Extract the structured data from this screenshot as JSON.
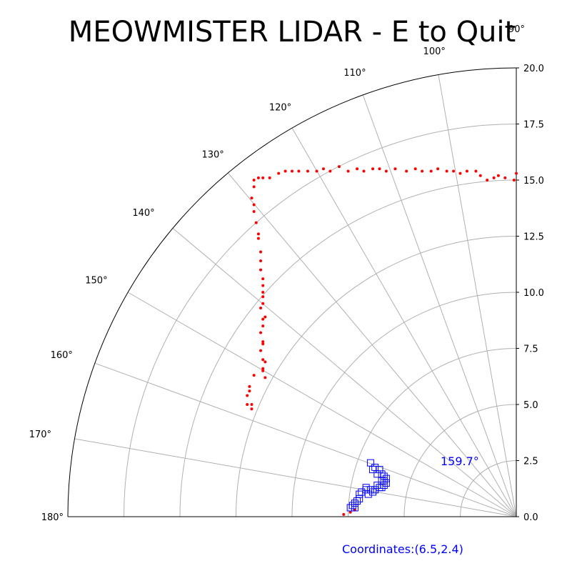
{
  "title": "MEOWMISTER LIDAR - E to Quit",
  "coordinates_text": "Coordinates:(6.5,2.4)",
  "angle_annotation": "159.7°",
  "colors": {
    "points": "#ff0000",
    "markers": "#0000ff",
    "grid": "#b0b0b0",
    "text_accent": "#0000ff"
  },
  "chart_data": {
    "type": "scatter",
    "projection": "polar",
    "theta_range_deg": [
      90,
      180
    ],
    "r_range": [
      0,
      20
    ],
    "grid": true,
    "theta_ticks": [
      "90°",
      "100°",
      "110°",
      "120°",
      "130°",
      "140°",
      "150°",
      "160°",
      "170°",
      "180°"
    ],
    "r_ticks": [
      "0.0",
      "2.5",
      "5.0",
      "7.5",
      "10.0",
      "12.5",
      "15.0",
      "17.5",
      "20.0"
    ],
    "series": [
      {
        "marker": "dot",
        "color": "#ff0000",
        "points_xy": [
          [
            0.0,
            15.3
          ],
          [
            -0.1,
            15.0
          ],
          [
            -0.5,
            15.1
          ],
          [
            -0.8,
            15.2
          ],
          [
            -1.0,
            15.1
          ],
          [
            -1.3,
            15.0
          ],
          [
            -1.6,
            15.2
          ],
          [
            -1.8,
            15.4
          ],
          [
            -2.2,
            15.4
          ],
          [
            -2.5,
            15.3
          ],
          [
            -2.8,
            15.4
          ],
          [
            -3.1,
            15.4
          ],
          [
            -3.5,
            15.5
          ],
          [
            -3.8,
            15.4
          ],
          [
            -4.2,
            15.4
          ],
          [
            -4.5,
            15.5
          ],
          [
            -4.9,
            15.4
          ],
          [
            -5.4,
            15.5
          ],
          [
            -5.8,
            15.4
          ],
          [
            -6.1,
            15.5
          ],
          [
            -6.4,
            15.5
          ],
          [
            -6.8,
            15.4
          ],
          [
            -7.1,
            15.5
          ],
          [
            -7.5,
            15.4
          ],
          [
            -7.9,
            15.6
          ],
          [
            -8.3,
            15.4
          ],
          [
            -8.6,
            15.5
          ],
          [
            -8.9,
            15.4
          ],
          [
            -9.3,
            15.4
          ],
          [
            -9.7,
            15.4
          ],
          [
            -10.0,
            15.4
          ],
          [
            -10.3,
            15.4
          ],
          [
            -10.6,
            15.3
          ],
          [
            -11.0,
            15.1
          ],
          [
            -11.3,
            15.1
          ],
          [
            -11.5,
            15.1
          ],
          [
            -11.7,
            15.0
          ],
          [
            -11.7,
            14.7
          ],
          [
            -11.8,
            14.2
          ],
          [
            -11.7,
            13.9
          ],
          [
            -11.7,
            13.6
          ],
          [
            -11.6,
            13.1
          ],
          [
            -11.5,
            12.6
          ],
          [
            -11.5,
            12.4
          ],
          [
            -11.4,
            11.8
          ],
          [
            -11.4,
            11.4
          ],
          [
            -11.4,
            11.0
          ],
          [
            -11.3,
            10.6
          ],
          [
            -11.3,
            10.3
          ],
          [
            -11.3,
            10.0
          ],
          [
            -11.3,
            9.8
          ],
          [
            -11.3,
            9.5
          ],
          [
            -11.4,
            9.3
          ],
          [
            -11.3,
            8.8
          ],
          [
            -11.2,
            8.9
          ],
          [
            -11.3,
            8.5
          ],
          [
            -11.4,
            8.2
          ],
          [
            -11.3,
            7.8
          ],
          [
            -11.3,
            7.7
          ],
          [
            -11.4,
            7.4
          ],
          [
            -11.3,
            7.0
          ],
          [
            -11.2,
            6.9
          ],
          [
            -11.3,
            6.6
          ],
          [
            -11.3,
            6.5
          ],
          [
            -11.2,
            6.2
          ],
          [
            -11.7,
            6.3
          ],
          [
            -11.9,
            5.8
          ],
          [
            -11.9,
            5.6
          ],
          [
            -12.0,
            5.4
          ],
          [
            -11.8,
            5.0
          ],
          [
            -12.0,
            5.0
          ],
          [
            -11.8,
            4.8
          ],
          [
            -7.7,
            0.1
          ],
          [
            -7.4,
            0.2
          ],
          [
            -7.2,
            0.3
          ]
        ]
      },
      {
        "marker": "square",
        "color": "#0000ff",
        "points_xy": [
          [
            -6.5,
            2.4
          ],
          [
            -6.3,
            2.2
          ],
          [
            -6.1,
            2.1
          ],
          [
            -6.0,
            1.9
          ],
          [
            -5.9,
            1.8
          ],
          [
            -5.8,
            1.7
          ],
          [
            -5.8,
            1.5
          ],
          [
            -5.9,
            1.6
          ],
          [
            -5.9,
            1.4
          ],
          [
            -6.0,
            1.3
          ],
          [
            -6.1,
            1.3
          ],
          [
            -6.3,
            1.2
          ],
          [
            -6.5,
            1.2
          ],
          [
            -6.7,
            1.2
          ],
          [
            -6.9,
            1.1
          ],
          [
            -7.0,
            1.0
          ],
          [
            -7.0,
            0.8
          ],
          [
            -7.1,
            0.7
          ],
          [
            -7.2,
            0.6
          ],
          [
            -7.3,
            0.5
          ],
          [
            -7.2,
            0.4
          ],
          [
            -7.4,
            0.4
          ],
          [
            -6.7,
            1.3
          ],
          [
            -6.6,
            1.0
          ],
          [
            -6.4,
            1.1
          ],
          [
            -6.2,
            1.4
          ],
          [
            -6.0,
            1.6
          ],
          [
            -6.2,
            1.9
          ],
          [
            -6.4,
            2.1
          ]
        ]
      }
    ]
  }
}
